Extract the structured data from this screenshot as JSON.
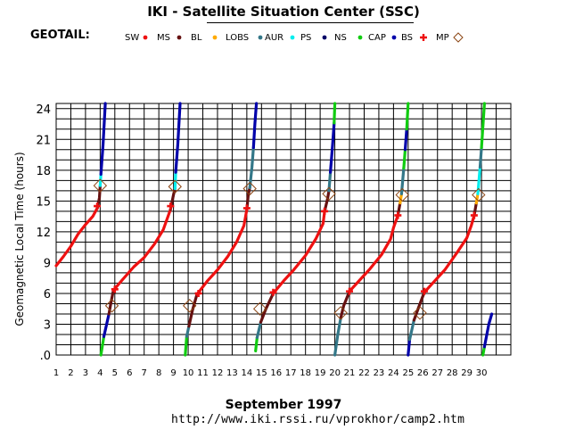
{
  "header": {
    "title": "IKI - Satellite Situation Center (SSC)",
    "satellite": "GEOTAIL:"
  },
  "footer": {
    "month_year": "September    1997",
    "url": "http://www.iki.rssi.ru/vprokhor/camp2.htm"
  },
  "chart_data": {
    "type": "line",
    "title": "IKI - Satellite Situation Center (SSC)",
    "ylabel": "Geomagnetic Local Time (hours)",
    "xlabel": "September 1997",
    "xlim": [
      1,
      32
    ],
    "ylim": [
      0,
      24.5
    ],
    "x_ticks": [
      1,
      2,
      3,
      4,
      5,
      6,
      7,
      8,
      9,
      10,
      11,
      12,
      13,
      14,
      15,
      16,
      17,
      18,
      19,
      20,
      21,
      22,
      23,
      24,
      25,
      26,
      27,
      28,
      29,
      30
    ],
    "y_ticks": [
      0,
      3,
      6,
      9,
      12,
      15,
      18,
      21,
      24
    ],
    "y_tick_labels": [
      ".0",
      "3",
      "6",
      "9",
      "12",
      "15",
      "18",
      "21",
      "24"
    ],
    "grid": true,
    "legend": [
      {
        "name": "SW",
        "color": "#ee1111",
        "marker": "dot"
      },
      {
        "name": "MS",
        "color": "#661111",
        "marker": "dot"
      },
      {
        "name": "BL",
        "color": "#ffaa00",
        "marker": "dot"
      },
      {
        "name": "LOBS",
        "color": "#337788",
        "marker": "dot"
      },
      {
        "name": "AUR",
        "color": "#00eeee",
        "marker": "dot"
      },
      {
        "name": "PS",
        "color": "#000066",
        "marker": "dot"
      },
      {
        "name": "NS",
        "color": "#11cc11",
        "marker": "dot"
      },
      {
        "name": "CAP",
        "color": "#0000aa",
        "marker": "dot"
      },
      {
        "name": "BS",
        "color": "#ee1111",
        "marker": "cross"
      },
      {
        "name": "MP",
        "color": "#8b4513",
        "marker": "diamond"
      }
    ],
    "segments": [
      {
        "region": "SW",
        "points": [
          [
            1.0,
            8.7
          ],
          [
            1.5,
            9.6
          ],
          [
            2.0,
            10.6
          ],
          [
            2.5,
            11.8
          ],
          [
            3.0,
            12.7
          ],
          [
            3.5,
            13.5
          ],
          [
            3.8,
            14.3
          ]
        ]
      },
      {
        "region": "MS",
        "points": [
          [
            3.8,
            14.3
          ],
          [
            3.95,
            15.3
          ],
          [
            4.0,
            16.5
          ]
        ]
      },
      {
        "region": "AUR",
        "points": [
          [
            4.0,
            16.5
          ],
          [
            4.05,
            17.6
          ]
        ]
      },
      {
        "region": "CAP",
        "points": [
          [
            4.05,
            17.6
          ],
          [
            4.2,
            20.5
          ],
          [
            4.35,
            24.5
          ]
        ]
      },
      {
        "region": "NS",
        "points": [
          [
            4.05,
            0.0
          ],
          [
            4.25,
            1.8
          ]
        ]
      },
      {
        "region": "CAP",
        "points": [
          [
            4.25,
            1.8
          ],
          [
            4.6,
            4.0
          ]
        ]
      },
      {
        "region": "MS",
        "points": [
          [
            4.6,
            4.0
          ],
          [
            4.75,
            5.2
          ],
          [
            4.9,
            6.3
          ]
        ]
      },
      {
        "region": "SW",
        "points": [
          [
            4.9,
            6.3
          ],
          [
            5.5,
            7.3
          ],
          [
            6.3,
            8.6
          ],
          [
            7.0,
            9.5
          ],
          [
            7.7,
            10.8
          ],
          [
            8.3,
            12.2
          ],
          [
            8.8,
            14.2
          ]
        ]
      },
      {
        "region": "MS",
        "points": [
          [
            8.8,
            14.2
          ],
          [
            9.0,
            15.6
          ],
          [
            9.1,
            16.2
          ]
        ]
      },
      {
        "region": "AUR",
        "points": [
          [
            9.1,
            16.2
          ],
          [
            9.15,
            17.8
          ]
        ]
      },
      {
        "region": "CAP",
        "points": [
          [
            9.15,
            17.8
          ],
          [
            9.3,
            20.6
          ],
          [
            9.45,
            24.5
          ]
        ]
      },
      {
        "region": "NS",
        "points": [
          [
            9.8,
            0.0
          ],
          [
            9.9,
            1.8
          ]
        ]
      },
      {
        "region": "LOBS",
        "points": [
          [
            9.9,
            1.8
          ],
          [
            10.05,
            2.8
          ]
        ]
      },
      {
        "region": "MS",
        "points": [
          [
            10.05,
            2.8
          ],
          [
            10.3,
            4.4
          ],
          [
            10.6,
            5.9
          ]
        ]
      },
      {
        "region": "SW",
        "points": [
          [
            10.6,
            5.9
          ],
          [
            11.3,
            7.2
          ],
          [
            12.0,
            8.3
          ],
          [
            12.7,
            9.6
          ],
          [
            13.3,
            11.0
          ],
          [
            13.8,
            12.6
          ],
          [
            14.0,
            14.2
          ]
        ]
      },
      {
        "region": "MS",
        "points": [
          [
            14.0,
            14.2
          ],
          [
            14.1,
            15.6
          ],
          [
            14.2,
            16.3
          ]
        ]
      },
      {
        "region": "LOBS",
        "points": [
          [
            14.2,
            16.3
          ],
          [
            14.35,
            18.3
          ],
          [
            14.45,
            20.2
          ]
        ]
      },
      {
        "region": "CAP",
        "points": [
          [
            14.45,
            20.2
          ],
          [
            14.55,
            22.5
          ],
          [
            14.65,
            24.5
          ]
        ]
      },
      {
        "region": "NS",
        "points": [
          [
            14.6,
            0.4
          ],
          [
            14.7,
            1.7
          ]
        ]
      },
      {
        "region": "LOBS",
        "points": [
          [
            14.7,
            1.7
          ],
          [
            14.95,
            3.2
          ]
        ]
      },
      {
        "region": "MS",
        "points": [
          [
            14.95,
            3.2
          ],
          [
            15.3,
            4.5
          ],
          [
            15.8,
            6.0
          ]
        ]
      },
      {
        "region": "SW",
        "points": [
          [
            15.8,
            6.0
          ],
          [
            16.5,
            7.2
          ],
          [
            17.2,
            8.3
          ],
          [
            18.0,
            9.7
          ],
          [
            18.7,
            11.3
          ],
          [
            19.2,
            12.8
          ],
          [
            19.3,
            14.0
          ]
        ]
      },
      {
        "region": "MS",
        "points": [
          [
            19.3,
            14.0
          ],
          [
            19.5,
            15.2
          ],
          [
            19.6,
            16.0
          ]
        ]
      },
      {
        "region": "LOBS",
        "points": [
          [
            19.6,
            16.0
          ],
          [
            19.7,
            17.8
          ]
        ]
      },
      {
        "region": "CAP",
        "points": [
          [
            19.7,
            17.8
          ],
          [
            19.85,
            20.5
          ],
          [
            19.95,
            22.6
          ]
        ]
      },
      {
        "region": "NS",
        "points": [
          [
            19.95,
            22.6
          ],
          [
            20.0,
            24.5
          ]
        ]
      },
      {
        "region": "LOBS",
        "points": [
          [
            20.0,
            0.0
          ],
          [
            20.2,
            2.0
          ],
          [
            20.4,
            3.6
          ]
        ]
      },
      {
        "region": "MS",
        "points": [
          [
            20.4,
            3.6
          ],
          [
            20.6,
            4.8
          ],
          [
            21.0,
            6.2
          ]
        ]
      },
      {
        "region": "SW",
        "points": [
          [
            21.0,
            6.2
          ],
          [
            21.7,
            7.3
          ],
          [
            22.4,
            8.4
          ],
          [
            23.2,
            9.8
          ],
          [
            23.8,
            11.3
          ],
          [
            24.0,
            12.4
          ],
          [
            24.3,
            13.6
          ]
        ]
      },
      {
        "region": "MS",
        "points": [
          [
            24.3,
            13.6
          ],
          [
            24.45,
            14.8
          ]
        ]
      },
      {
        "region": "BL",
        "points": [
          [
            24.45,
            14.8
          ],
          [
            24.55,
            15.7
          ]
        ]
      },
      {
        "region": "LOBS",
        "points": [
          [
            24.55,
            15.7
          ],
          [
            24.7,
            18.2
          ]
        ]
      },
      {
        "region": "NS",
        "points": [
          [
            24.7,
            18.2
          ],
          [
            24.8,
            20.0
          ]
        ]
      },
      {
        "region": "CAP",
        "points": [
          [
            24.8,
            20.0
          ],
          [
            24.9,
            22.0
          ]
        ]
      },
      {
        "region": "NS",
        "points": [
          [
            24.9,
            22.0
          ],
          [
            25.0,
            24.5
          ]
        ]
      },
      {
        "region": "CAP",
        "points": [
          [
            25.0,
            0.0
          ],
          [
            25.1,
            1.5
          ]
        ]
      },
      {
        "region": "LOBS",
        "points": [
          [
            25.1,
            1.5
          ],
          [
            25.4,
            3.4
          ]
        ]
      },
      {
        "region": "MS",
        "points": [
          [
            25.4,
            3.4
          ],
          [
            25.7,
            4.6
          ],
          [
            26.1,
            6.1
          ]
        ]
      },
      {
        "region": "SW",
        "points": [
          [
            26.1,
            6.1
          ],
          [
            26.8,
            7.2
          ],
          [
            27.5,
            8.3
          ],
          [
            28.3,
            9.9
          ],
          [
            29.0,
            11.4
          ],
          [
            29.3,
            12.6
          ],
          [
            29.5,
            13.6
          ]
        ]
      },
      {
        "region": "MS",
        "points": [
          [
            29.5,
            13.6
          ],
          [
            29.65,
            14.8
          ]
        ]
      },
      {
        "region": "BL",
        "points": [
          [
            29.65,
            14.8
          ],
          [
            29.75,
            15.7
          ]
        ]
      },
      {
        "region": "AUR",
        "points": [
          [
            29.75,
            15.7
          ],
          [
            29.9,
            18.3
          ]
        ]
      },
      {
        "region": "LOBS",
        "points": [
          [
            29.9,
            18.3
          ],
          [
            30.0,
            20.2
          ]
        ]
      },
      {
        "region": "NS",
        "points": [
          [
            30.0,
            20.2
          ],
          [
            30.2,
            24.5
          ]
        ]
      },
      {
        "region": "NS",
        "points": [
          [
            30.1,
            0.0
          ],
          [
            30.2,
            0.8
          ]
        ]
      },
      {
        "region": "CAP",
        "points": [
          [
            30.2,
            0.8
          ],
          [
            30.5,
            3.0
          ],
          [
            30.7,
            4.0
          ]
        ]
      }
    ],
    "bow_shock_crossings": [
      [
        3.8,
        14.5
      ],
      [
        5.0,
        6.4
      ],
      [
        8.8,
        14.5
      ],
      [
        10.7,
        6.0
      ],
      [
        14.0,
        14.3
      ],
      [
        15.8,
        6.1
      ],
      [
        19.3,
        14.0
      ],
      [
        21.0,
        6.2
      ],
      [
        24.3,
        13.6
      ],
      [
        26.1,
        6.2
      ],
      [
        29.5,
        13.6
      ]
    ],
    "magnetopause_crossings": [
      [
        4.0,
        16.5
      ],
      [
        4.8,
        4.8
      ],
      [
        9.1,
        16.4
      ],
      [
        10.1,
        4.8
      ],
      [
        14.2,
        16.2
      ],
      [
        14.9,
        4.5
      ],
      [
        19.6,
        15.7
      ],
      [
        20.4,
        4.1
      ],
      [
        24.6,
        15.6
      ],
      [
        25.8,
        4.1
      ],
      [
        29.8,
        15.6
      ]
    ]
  }
}
